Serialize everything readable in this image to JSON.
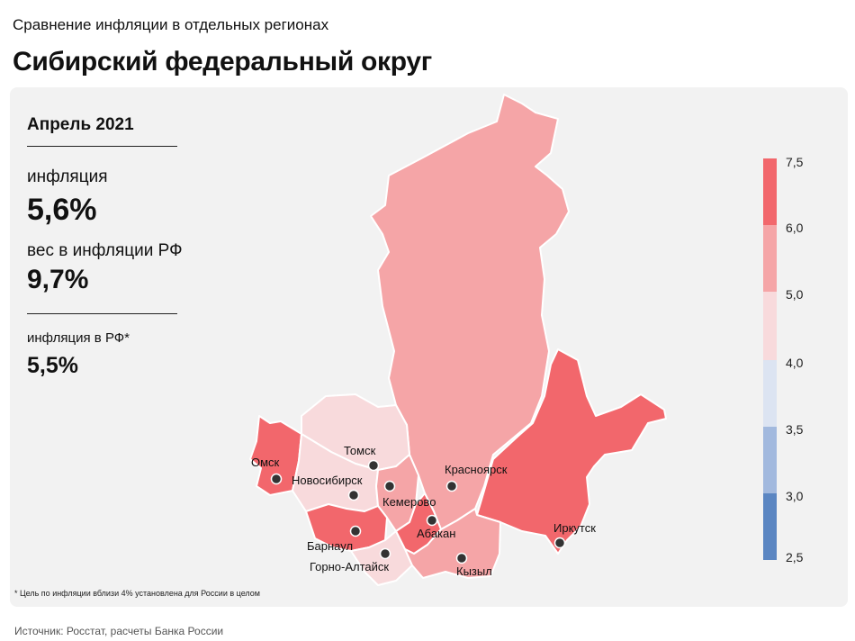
{
  "header": {
    "subtitle": "Сравнение инфляции  в отдельных регионах",
    "title": "Сибирский федеральный округ"
  },
  "info": {
    "period": "Апрель 2021",
    "inflation_label": "инфляция",
    "inflation_value": "5,6%",
    "weight_label": "вес в инфляции  РФ",
    "weight_value": "9,7%",
    "rf_inflation_label": "инфляция  в РФ*",
    "rf_inflation_value": "5,5%"
  },
  "legend": {
    "ticks": [
      "7,5",
      "6,0",
      "5,0",
      "4,0",
      "3,5",
      "3,0",
      "2,5"
    ],
    "bins": [
      {
        "from": 6.0,
        "to": 7.5,
        "color": "#f2676c"
      },
      {
        "from": 5.0,
        "to": 6.0,
        "color": "#f5a5a7"
      },
      {
        "from": 4.0,
        "to": 5.0,
        "color": "#f8dadc"
      },
      {
        "from": 3.5,
        "to": 4.0,
        "color": "#dce4f2"
      },
      {
        "from": 3.0,
        "to": 3.5,
        "color": "#a2b9de"
      },
      {
        "from": 2.5,
        "to": 3.0,
        "color": "#5b86c2"
      }
    ]
  },
  "regions": [
    {
      "name": "Красноярский край",
      "color": "#f5a5a7"
    },
    {
      "name": "Иркутская область",
      "color": "#f2676c"
    },
    {
      "name": "Омская область",
      "color": "#f2676c"
    },
    {
      "name": "Томская область",
      "color": "#f8dadc"
    },
    {
      "name": "Новосибирская область",
      "color": "#f8dadc"
    },
    {
      "name": "Кемеровская область",
      "color": "#f5a5a7"
    },
    {
      "name": "Алтайский край",
      "color": "#f2676c"
    },
    {
      "name": "Республика Алтай",
      "color": "#f8dadc"
    },
    {
      "name": "Республика Хакасия",
      "color": "#f2676c"
    },
    {
      "name": "Республика Тыва",
      "color": "#f5a5a7"
    }
  ],
  "cities": {
    "omsk": "Омск",
    "novosibirsk": "Новосибирск",
    "tomsk": "Томск",
    "kemerovo": "Кемерово",
    "krasnoyarsk": "Красноярск",
    "abakan": "Абакан",
    "barnaul": "Барнаул",
    "gorno_altaysk": "Горно-Алтайск",
    "kyzyl": "Кызыл",
    "irkutsk": "Иркутск"
  },
  "footnote": "* Цель по инфляции вблизи 4% установлена для России в целом",
  "source": "Источник: Росстат, расчеты Банка России"
}
